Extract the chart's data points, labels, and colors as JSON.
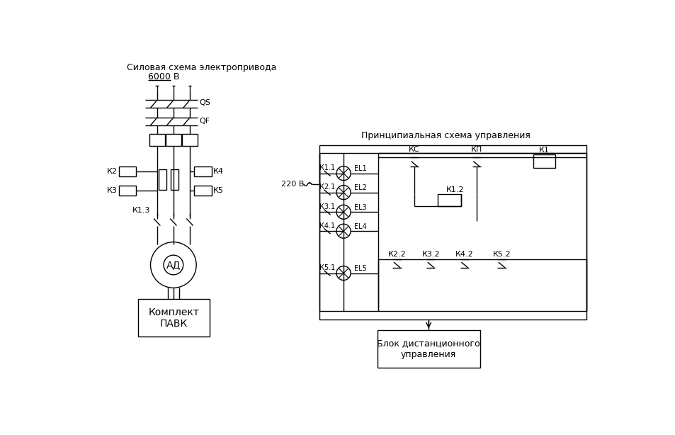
{
  "bg_color": "#ffffff",
  "line_color": "#000000",
  "title_left": "Силовая схема электропривода",
  "subtitle_left": "6000 В",
  "title_right": "Принципиальная схема управления",
  "label_QS": "QS",
  "label_QF": "QF",
  "label_220": "220 В ~",
  "label_K2": "К2",
  "label_K3": "К3",
  "label_K4": "К4",
  "label_K5": "К5",
  "label_K13": "К1.3",
  "label_AD": "АД",
  "label_pavk": "Комплект\nПАВК",
  "label_KC": "КС",
  "label_KP": "КП",
  "label_K1": "К1",
  "label_K12": "К1.2",
  "label_K11": "К1.1",
  "label_K21": "К2.1",
  "label_K31": "К3.1",
  "label_K41": "К4.1",
  "label_K51": "К5.1",
  "label_EL1": "EL1",
  "label_EL2": "EL2",
  "label_EL3": "EL3",
  "label_EL4": "EL4",
  "label_EL5": "EL5",
  "label_K22": "К2.2",
  "label_K32": "К3.2",
  "label_K42": "К4.2",
  "label_K52": "К5.2",
  "label_remote": "Блок дистанционного\nуправления"
}
